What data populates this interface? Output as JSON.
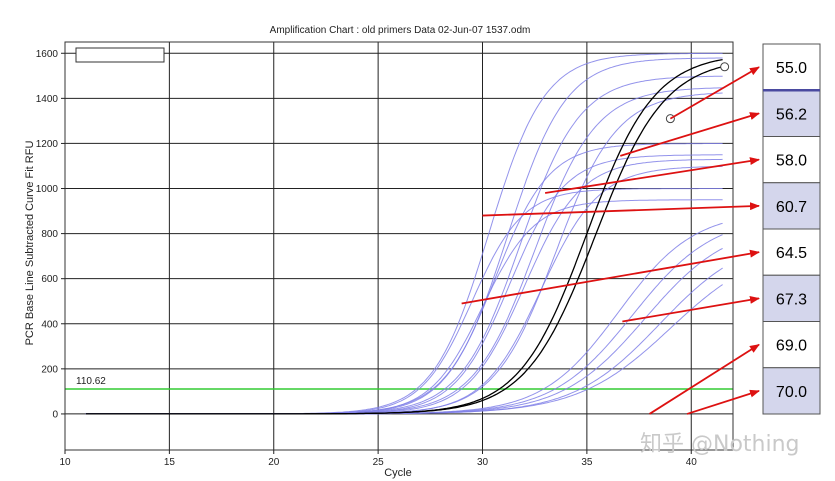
{
  "chart_data": {
    "type": "line",
    "title": "Amplification Chart : old primers   Data 02-Jun-07 1537.odm",
    "xlabel": "Cycle",
    "ylabel": "PCR Base Line Subtracted Curve Fit RFU",
    "xlim": [
      10,
      42
    ],
    "ylim": [
      -160,
      1650
    ],
    "x_ticks": [
      10,
      15,
      20,
      25,
      30,
      35,
      40
    ],
    "y_ticks": [
      0,
      200,
      400,
      600,
      800,
      1000,
      1200,
      1400,
      1600
    ],
    "grid": true,
    "threshold": {
      "value": 110.62,
      "label": "110.62",
      "color": "#33cc33"
    },
    "curve_color": "#8080e8",
    "highlight_color": "#000000",
    "series": [
      {
        "highlight": false,
        "top": 1600,
        "midpoint": 30.3,
        "slope": 0.75
      },
      {
        "highlight": false,
        "top": 1580,
        "midpoint": 31.2,
        "slope": 0.72
      },
      {
        "highlight": false,
        "top": 1500,
        "midpoint": 31.8,
        "slope": 0.7
      },
      {
        "highlight": false,
        "top": 1450,
        "midpoint": 32.5,
        "slope": 0.68
      },
      {
        "highlight": false,
        "top": 1430,
        "midpoint": 33.5,
        "slope": 0.68
      },
      {
        "highlight": false,
        "top": 1200,
        "midpoint": 30.6,
        "slope": 0.78
      },
      {
        "highlight": false,
        "top": 1150,
        "midpoint": 31.3,
        "slope": 0.76
      },
      {
        "highlight": false,
        "top": 1130,
        "midpoint": 32.0,
        "slope": 0.74
      },
      {
        "highlight": false,
        "top": 1100,
        "midpoint": 32.8,
        "slope": 0.72
      },
      {
        "highlight": false,
        "top": 1000,
        "midpoint": 29.5,
        "slope": 0.82
      },
      {
        "highlight": false,
        "top": 950,
        "midpoint": 30.0,
        "slope": 0.8
      },
      {
        "highlight": false,
        "top": 900,
        "midpoint": 36.5,
        "slope": 0.55
      },
      {
        "highlight": false,
        "top": 880,
        "midpoint": 37.2,
        "slope": 0.52
      },
      {
        "highlight": false,
        "top": 850,
        "midpoint": 37.8,
        "slope": 0.5
      },
      {
        "highlight": false,
        "top": 800,
        "midpoint": 38.5,
        "slope": 0.48
      },
      {
        "highlight": false,
        "top": 760,
        "midpoint": 39.0,
        "slope": 0.45
      },
      {
        "highlight": true,
        "top": 1600,
        "midpoint": 35.0,
        "slope": 0.62
      },
      {
        "highlight": true,
        "top": 1580,
        "midpoint": 35.4,
        "slope": 0.6
      }
    ],
    "marker_points": [
      {
        "x": 39.0,
        "y": 1310
      },
      {
        "x": 41.6,
        "y": 1540
      }
    ],
    "temperature_labels": [
      "55.0",
      "56.2",
      "58.0",
      "60.7",
      "64.5",
      "67.3",
      "69.0",
      "70.0"
    ],
    "temperature_shading": [
      false,
      true,
      false,
      true,
      false,
      true,
      false,
      true
    ],
    "arrow_targets": [
      {
        "x": 39.0,
        "y": 1310
      },
      {
        "x": 36.6,
        "y": 1145
      },
      {
        "x": 33.0,
        "y": 980
      },
      {
        "x": 30.0,
        "y": 880
      },
      {
        "x": 29.0,
        "y": 490
      },
      {
        "x": 36.7,
        "y": 410
      },
      {
        "x": 38.0,
        "y": 0
      },
      {
        "x": 39.8,
        "y": 0
      }
    ],
    "arrow_color": "#dd1111"
  },
  "watermark": "知乎 @Nothing"
}
